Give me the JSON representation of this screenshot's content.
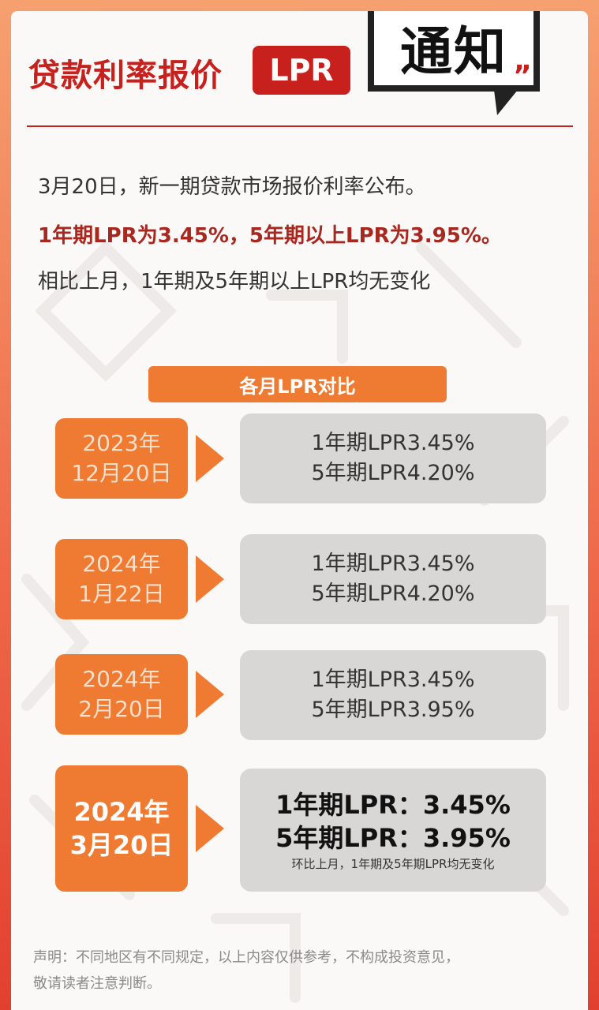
{
  "header": {
    "headline": "贷款利率报价",
    "tag": "LPR",
    "notice": "通知"
  },
  "intro": {
    "line1": "3月20日，新一期贷款市场报价利率公布。",
    "line2": "1年期LPR为3.45%，5年期以上LPR为3.95%。",
    "line3": "相比上月，1年期及5年期以上LPR均无变化"
  },
  "section_title": "各月LPR对比",
  "rows": [
    {
      "year": "2023年",
      "date": "12月20日",
      "rate1": "1年期LPR3.45%",
      "rate5": "5年期LPR4.20%"
    },
    {
      "year": "2024年",
      "date": "1月22日",
      "rate1": "1年期LPR3.45%",
      "rate5": "5年期LPR4.20%"
    },
    {
      "year": "2024年",
      "date": "2月20日",
      "rate1": "1年期LPR3.45%",
      "rate5": "5年期LPR3.95%"
    },
    {
      "year": "2024年",
      "date": "3月20日",
      "rate1": "1年期LPR：3.45%",
      "rate5": "5年期LPR：3.95%",
      "note": "环比上月，1年期及5年期LPR均无变化"
    }
  ],
  "disclaimer": {
    "line1": "声明：不同地区有不同规定，以上内容仅供参考，不构成投资意见，",
    "line2": "敬请读者注意判断。"
  },
  "colors": {
    "accent_red": "#c8201c",
    "accent_orange": "#ef7a31",
    "box_gray": "#d9d7d6"
  }
}
